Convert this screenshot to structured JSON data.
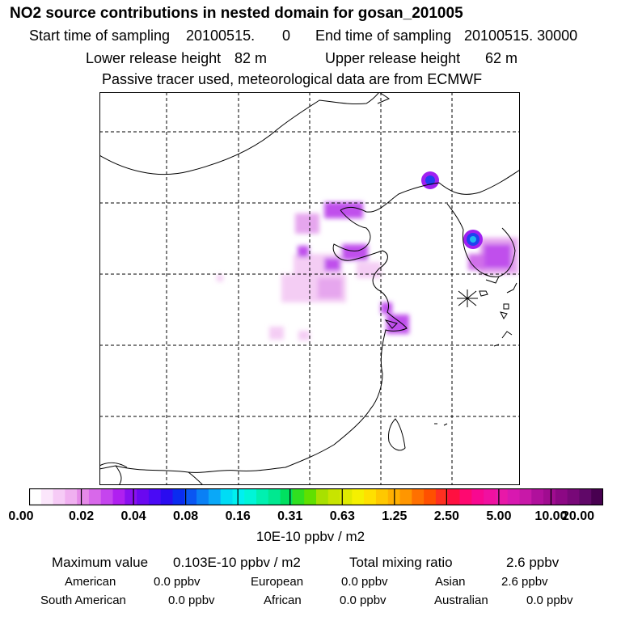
{
  "title": "NO2 source contributions in nested domain for gosan_201005",
  "header": {
    "start_label": "Start time of sampling",
    "start_value": "20100515.",
    "start_hour": "0",
    "end_label": "End time of sampling",
    "end_value": "20100515. 30000",
    "lower_label": "Lower release height",
    "lower_value": "82 m",
    "upper_label": "Upper release height",
    "upper_value": "62 m",
    "note": "Passive tracer used, meteorological data are from ECMWF"
  },
  "colorbar": {
    "ticks": [
      "0.00",
      "0.02",
      "0.04",
      "0.08",
      "0.16",
      "0.31",
      "0.63",
      "1.25",
      "2.50",
      "5.00",
      "10.00",
      "20.00"
    ],
    "colors": [
      "#ffffff",
      "#fbe6fb",
      "#f6cbf6",
      "#f0b0f0",
      "#e58ae8",
      "#d868ea",
      "#c545ee",
      "#b020f0",
      "#8a10f0",
      "#6a08f0",
      "#4a0af5",
      "#2a0cf0",
      "#0a2cf0",
      "#0a56f2",
      "#0a80f5",
      "#0aa8f8",
      "#00dcf5",
      "#00f0f0",
      "#00f5d8",
      "#00f0b0",
      "#00e890",
      "#00e060",
      "#30e020",
      "#60e000",
      "#a8e000",
      "#c8e400",
      "#e0ea00",
      "#f5f000",
      "#ffe000",
      "#ffc800",
      "#ffb000",
      "#ff9600",
      "#ff7000",
      "#ff5000",
      "#ff3020",
      "#ff1040",
      "#ff0870",
      "#f80890",
      "#f010a0",
      "#e818a8",
      "#d818b0",
      "#c818a8",
      "#b0109c",
      "#a00c90",
      "#8c0884",
      "#780878",
      "#600868",
      "#480050"
    ],
    "units": "10E-10 ppbv / m2"
  },
  "stats": {
    "max_label": "Maximum value",
    "max_value": "0.103E-10 ppbv / m2",
    "total_label": "Total mixing ratio",
    "total_value": "2.6 ppbv",
    "regions": [
      {
        "name": "American",
        "value": "0.0 ppbv"
      },
      {
        "name": "European",
        "value": "0.0 ppbv"
      },
      {
        "name": "Asian",
        "value": "2.6 ppbv"
      },
      {
        "name": "South American",
        "value": "0.0 ppbv"
      },
      {
        "name": "African",
        "value": "0.0 ppbv"
      },
      {
        "name": "Australian",
        "value": "0.0 ppbv"
      }
    ]
  },
  "colors": {
    "plume_light": "#f4cdf4",
    "plume_mid": "#d070ea",
    "plume_dark": "#a020f0",
    "hotspot_blue": "#2040f0",
    "hotspot_cyan": "#20b8f0",
    "grid": "#000000"
  }
}
